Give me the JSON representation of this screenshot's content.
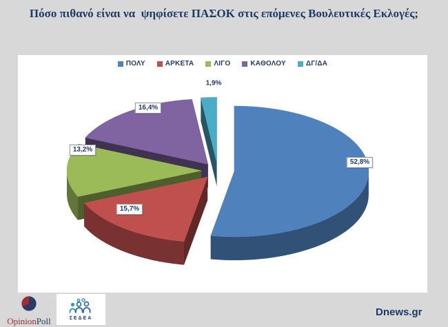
{
  "title": "Πόσο πιθανό είναι να  ψηφίσετε ΠΑΣΟΚ στις επόμενες Βουλευτικές Εκλογές;",
  "chart_data": {
    "type": "pie",
    "style": "3d-exploded",
    "title": "Πόσο πιθανό είναι να ψηφίσετε ΠΑΣΟΚ στις επόμενες Βουλευτικές Εκλογές;",
    "legend_position": "top",
    "categories": [
      "ΠΟΛΥ",
      "ΑΡΚΕΤΑ",
      "ΛΙΓΟ",
      "ΚΑΘΟΛΟΥ",
      "ΔΓ/ΔΑ"
    ],
    "values": [
      52.8,
      15.7,
      13.2,
      16.4,
      1.9
    ],
    "slices": [
      {
        "label": "ΠΟΛΥ",
        "value": 52.8,
        "display": "52,8%",
        "color": "#4f81bd",
        "boxed": true
      },
      {
        "label": "ΑΡΚΕΤΑ",
        "value": 15.7,
        "display": "15,7%",
        "color": "#c0504d",
        "boxed": true
      },
      {
        "label": "ΛΙΓΟ",
        "value": 13.2,
        "display": "13,2%",
        "color": "#9bbb59",
        "boxed": true
      },
      {
        "label": "ΚΑΘΟΛΟΥ",
        "value": 16.4,
        "display": "16,4%",
        "color": "#8064a2",
        "boxed": true
      },
      {
        "label": "ΔΓ/ΔΑ",
        "value": 1.9,
        "display": "1,9%",
        "color": "#4bacc6",
        "boxed": false
      }
    ]
  },
  "footer": {
    "opinionpoll": {
      "brand_red": "Opinion",
      "brand_navy": "Poll"
    },
    "sedea_label": "ΣΕΔΕΑ",
    "source": "Dnews.gr"
  },
  "colors": {
    "background": "#d8d8d8",
    "panel": "#ffffff",
    "title_text": "#1e3a68",
    "label_text": "#1e3a68"
  }
}
